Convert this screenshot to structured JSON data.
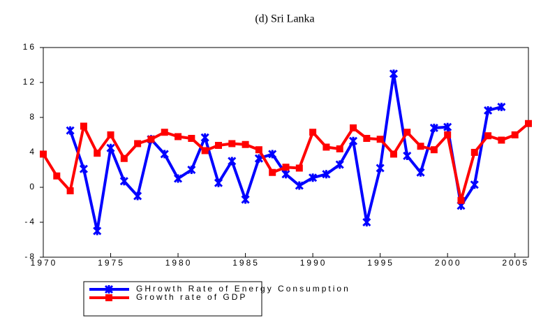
{
  "chart_data": {
    "type": "line",
    "title": "(d) Sri Lanka",
    "x": [
      1970,
      1971,
      1972,
      1973,
      1974,
      1975,
      1976,
      1977,
      1978,
      1979,
      1980,
      1981,
      1982,
      1983,
      1984,
      1985,
      1986,
      1987,
      1988,
      1989,
      1990,
      1991,
      1992,
      1993,
      1994,
      1995,
      1996,
      1997,
      1998,
      1999,
      2000,
      2001,
      2002,
      2003,
      2004,
      2005,
      2006
    ],
    "series": [
      {
        "name": "GHrowth Rate of Energy Consumption",
        "color": "#0000ff",
        "marker": "x",
        "values": [
          null,
          null,
          6.5,
          2.1,
          -5.0,
          4.5,
          0.7,
          -1.0,
          5.5,
          3.8,
          1.0,
          2.0,
          5.7,
          0.5,
          3.0,
          -1.4,
          3.3,
          3.8,
          1.5,
          0.2,
          1.1,
          1.5,
          2.6,
          5.3,
          -4.0,
          2.2,
          13.0,
          3.6,
          1.7,
          6.8,
          6.9,
          -2.1,
          0.3,
          8.8,
          9.2,
          null,
          null
        ]
      },
      {
        "name": "Growth rate of GDP",
        "color": "#ff0000",
        "marker": "square",
        "values": [
          3.8,
          1.3,
          -0.4,
          7.0,
          3.9,
          6.0,
          3.3,
          5.0,
          5.5,
          6.3,
          5.8,
          5.6,
          4.2,
          4.8,
          5.0,
          4.9,
          4.3,
          1.7,
          2.3,
          2.2,
          6.3,
          4.6,
          4.4,
          6.8,
          5.6,
          5.5,
          3.8,
          6.3,
          4.7,
          4.3,
          6.0,
          -1.5,
          4.0,
          5.9,
          5.4,
          6.0,
          7.3
        ]
      }
    ],
    "xlim": [
      1970,
      2006
    ],
    "xticks": [
      1970,
      1975,
      1980,
      1985,
      1990,
      1995,
      2000,
      2005
    ],
    "ylim": [
      -8,
      16
    ],
    "yticks": [
      -8,
      -4,
      0,
      4,
      8,
      12,
      16
    ]
  }
}
